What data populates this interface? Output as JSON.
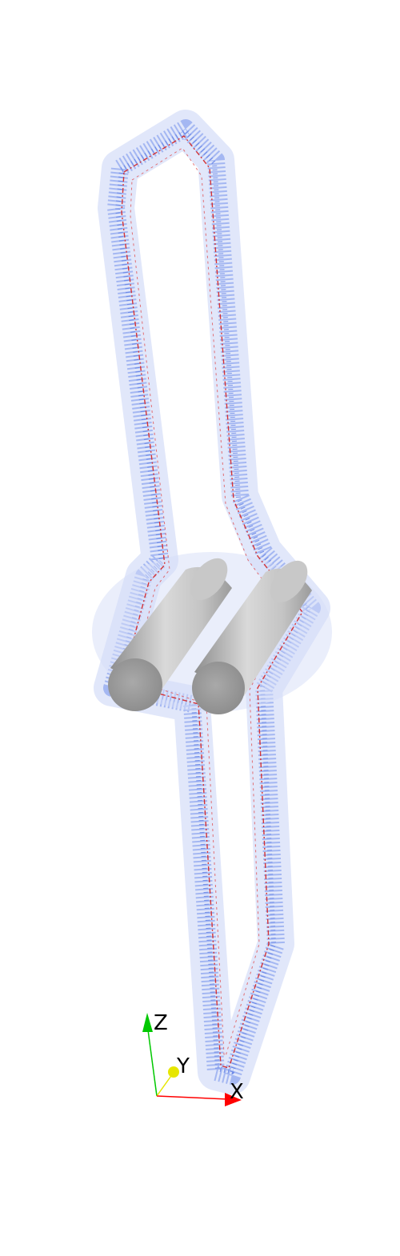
{
  "scene": {
    "background": "#ffffff",
    "flow_field_color": "#4169e1",
    "streamline_color": "#d42020",
    "cylinder_color": "#b8b8b8",
    "cylinder_cap_color": "#9a9a9a",
    "cylinder_count": 2
  },
  "axes": {
    "x_label": "X",
    "y_label": "Y",
    "z_label": "Z",
    "x_color": "#ff0000",
    "y_color": "#e6e600",
    "z_color": "#00c800"
  }
}
